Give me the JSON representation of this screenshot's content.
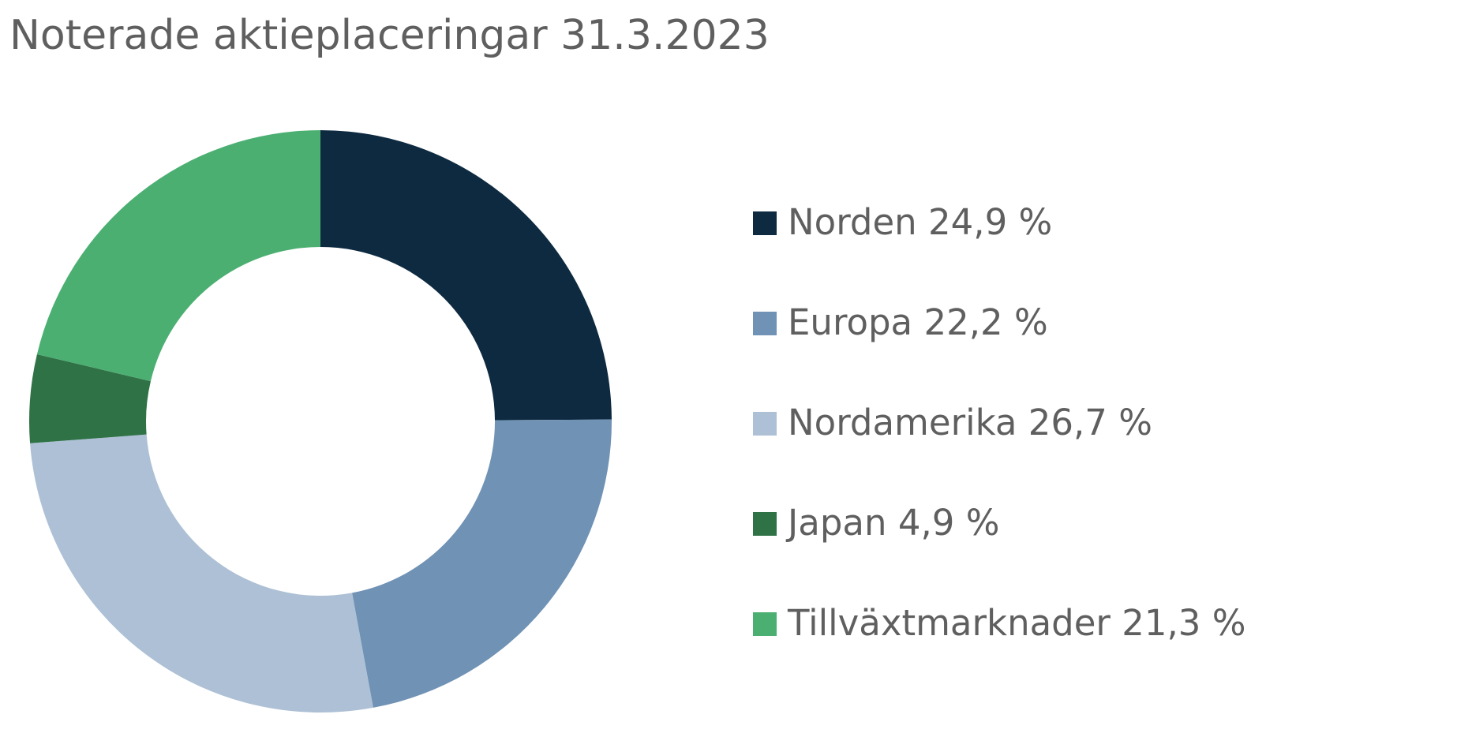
{
  "chart_data": {
    "type": "donut",
    "title": "Noterade aktieplaceringar 31.3.2023",
    "categories": [
      "Norden",
      "Europa",
      "Nordamerika",
      "Japan",
      "Tillväxtmarknader"
    ],
    "values": [
      24.9,
      22.2,
      26.7,
      4.9,
      21.3
    ],
    "value_labels": [
      "24,9 %",
      "22,2 %",
      "26,7 %",
      "4,9 %",
      "21,3 %"
    ],
    "colors": [
      "#0d2a40",
      "#7092b5",
      "#adc0d5",
      "#2e7246",
      "#4caf72"
    ]
  }
}
